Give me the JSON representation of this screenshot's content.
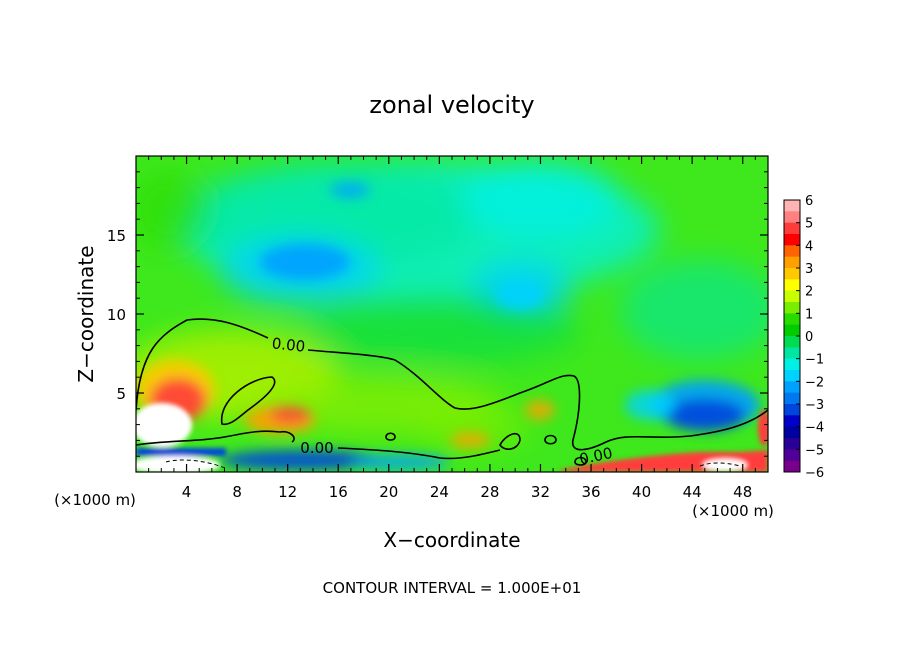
{
  "chart_data": {
    "type": "heatmap",
    "title": "zonal velocity",
    "xlabel": "X−coordinate",
    "ylabel": "Z−coordinate",
    "x_unit_left": "(×1000 m)",
    "x_unit_right": "(×1000 m)",
    "xlim": [
      0,
      50
    ],
    "ylim": [
      0,
      20
    ],
    "x_ticks": [
      4,
      8,
      12,
      16,
      20,
      24,
      28,
      32,
      36,
      40,
      44,
      48
    ],
    "x_tick_labels": [
      "4",
      "8",
      "12",
      "16",
      "20",
      "24",
      "28",
      "32",
      "36",
      "40",
      "44",
      "48"
    ],
    "y_ticks": [
      5,
      10,
      15
    ],
    "y_tick_labels": [
      "5",
      "10",
      "15"
    ],
    "colorbar": {
      "min": -6,
      "max": 6,
      "labels": [
        "6",
        "5",
        "4",
        "3",
        "2",
        "1",
        "0",
        "−1",
        "−2",
        "−3",
        "−4",
        "−5",
        "−6"
      ],
      "colors": [
        "#ffb4b4",
        "#ff8080",
        "#ff3c3c",
        "#ff0000",
        "#ff6400",
        "#ffa000",
        "#ffc800",
        "#ffff00",
        "#c8ff00",
        "#7aee00",
        "#28dc00",
        "#00cc00",
        "#00dc50",
        "#00e6a0",
        "#00f0e6",
        "#00d2ff",
        "#00a0ff",
        "#0078f0",
        "#0046dc",
        "#0000c8",
        "#0000a0",
        "#280096",
        "#500096",
        "#78008c"
      ]
    },
    "contour_labels": [
      "0.00",
      "0.00",
      "0.00"
    ],
    "footer": "CONTOUR INTERVAL = 1.000E+01"
  }
}
